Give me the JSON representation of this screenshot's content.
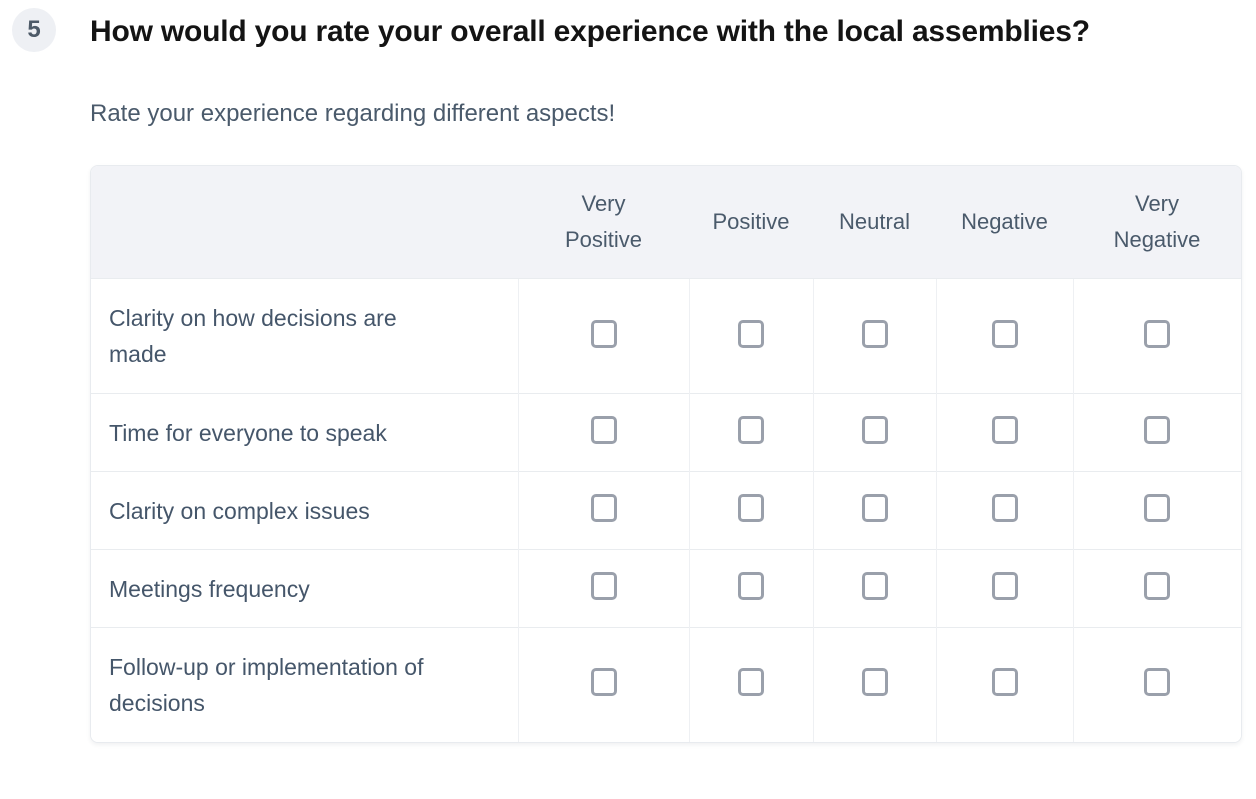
{
  "question": {
    "number": "5",
    "title": "How would you rate your overall experience with the local assemblies?",
    "description": "Rate your experience regarding different aspects!"
  },
  "matrix": {
    "column_headers": [
      "Very\nPositive",
      "Positive",
      "Neutral",
      "Negative",
      "Very\nNegative"
    ],
    "rows": [
      {
        "label": "Clarity on how decisions are made",
        "selections": [
          false,
          false,
          false,
          false,
          false
        ]
      },
      {
        "label": "Time for everyone to speak",
        "selections": [
          false,
          false,
          false,
          false,
          false
        ]
      },
      {
        "label": "Clarity on complex issues",
        "selections": [
          false,
          false,
          false,
          false,
          false
        ]
      },
      {
        "label": "Meetings frequency",
        "selections": [
          false,
          false,
          false,
          false,
          false
        ]
      },
      {
        "label": "Follow-up or implementation of decisions",
        "selections": [
          false,
          false,
          false,
          false,
          false
        ]
      }
    ]
  },
  "colors": {
    "header_background": "#f2f3f7",
    "badge_background": "#eef0f4",
    "text_primary": "#141414",
    "text_slate": "#4a5a6b",
    "table_border": "#e9ecef",
    "checkbox_border": "#9aa0ab"
  }
}
